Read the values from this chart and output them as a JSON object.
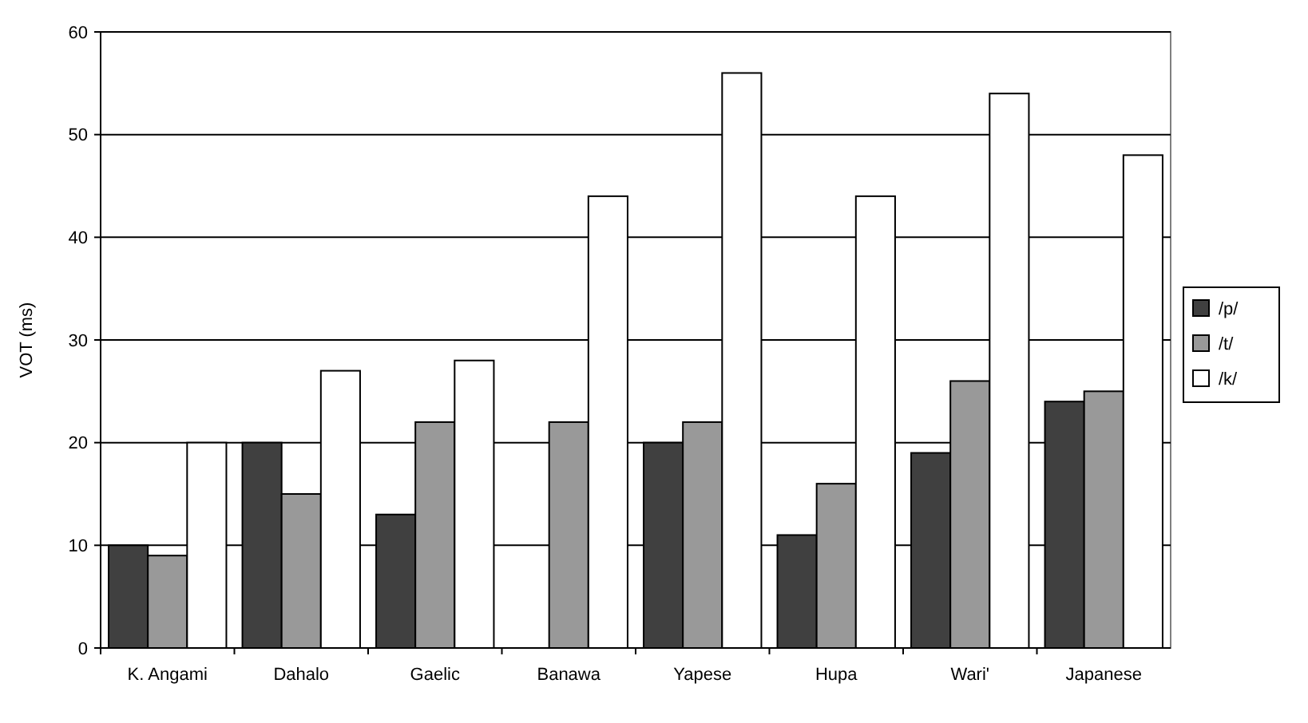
{
  "chart_data": {
    "type": "bar",
    "ylabel": "VOT (ms)",
    "categories": [
      "K. Angami",
      "Dahalo",
      "Gaelic",
      "Banawa",
      "Yapese",
      "Hupa",
      "Wari'",
      "Japanese"
    ],
    "series": [
      {
        "name": "/p/",
        "color": "#404040",
        "values": [
          10,
          20,
          13,
          null,
          20,
          11,
          19,
          24
        ]
      },
      {
        "name": "/t/",
        "color": "#999999",
        "values": [
          9,
          15,
          22,
          22,
          22,
          16,
          26,
          25
        ]
      },
      {
        "name": "/k/",
        "color": "#ffffff",
        "values": [
          20,
          27,
          28,
          44,
          56,
          44,
          54,
          48
        ]
      }
    ],
    "ylim": [
      0,
      60
    ],
    "yticks": [
      0,
      10,
      20,
      30,
      40,
      50,
      60
    ],
    "grid": "y",
    "legend": "right"
  }
}
